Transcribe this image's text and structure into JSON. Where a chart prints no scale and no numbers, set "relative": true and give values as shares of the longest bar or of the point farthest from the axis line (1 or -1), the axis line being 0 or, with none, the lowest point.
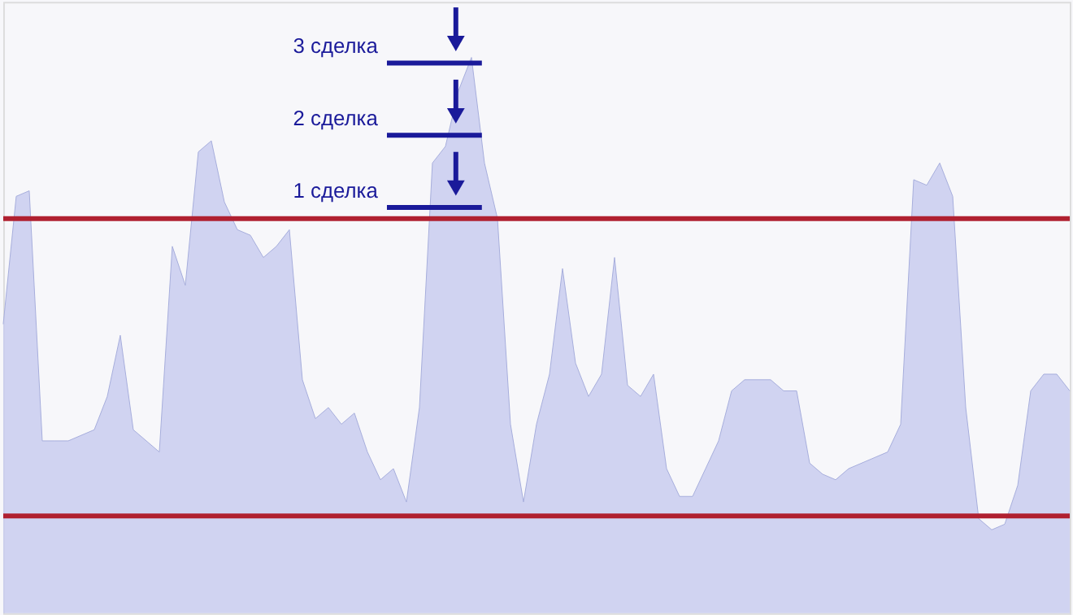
{
  "chart_data": {
    "type": "area",
    "relative": true,
    "tick_labels": false,
    "grid": false,
    "categories": [
      null,
      null,
      null,
      null,
      null,
      null,
      null,
      null,
      null,
      null,
      null,
      null,
      null,
      null,
      null,
      null,
      null,
      null,
      null,
      null,
      null,
      null,
      null,
      null,
      null,
      null,
      null,
      null,
      null,
      null,
      null,
      null,
      null,
      null,
      null,
      null,
      null,
      null,
      null,
      null,
      null,
      null,
      null,
      null,
      null,
      null,
      null,
      null,
      null,
      null,
      null,
      null,
      null,
      null,
      null,
      null,
      null,
      null,
      null,
      null,
      null,
      null,
      null,
      null,
      null,
      null,
      null,
      null,
      null,
      null,
      null,
      null,
      null,
      null,
      null,
      null,
      null,
      null,
      null,
      null,
      null,
      null,
      null
    ],
    "series": [
      {
        "color": "#c9cdee",
        "values": [
          0.52,
          0.75,
          0.76,
          0.31,
          0.31,
          0.31,
          0.32,
          0.33,
          0.39,
          0.5,
          0.33,
          0.31,
          0.29,
          0.66,
          0.59,
          0.83,
          0.85,
          0.74,
          0.69,
          0.68,
          0.64,
          0.66,
          0.69,
          0.42,
          0.35,
          0.37,
          0.34,
          0.36,
          0.29,
          0.24,
          0.26,
          0.2,
          0.37,
          0.81,
          0.84,
          0.94,
          1.0,
          0.81,
          0.71,
          0.34,
          0.2,
          0.34,
          0.43,
          0.62,
          0.45,
          0.39,
          0.43,
          0.64,
          0.41,
          0.39,
          0.43,
          0.26,
          0.21,
          0.21,
          0.26,
          0.31,
          0.4,
          0.42,
          0.42,
          0.42,
          0.4,
          0.4,
          0.27,
          0.25,
          0.24,
          0.26,
          0.27,
          0.28,
          0.29,
          0.34,
          0.78,
          0.77,
          0.81,
          0.75,
          0.37,
          0.17,
          0.15,
          0.16,
          0.23,
          0.4,
          0.43,
          0.43,
          0.4
        ]
      }
    ],
    "ref_lines": [
      {
        "axis": "y",
        "value": 0.71,
        "color": "#b02030"
      },
      {
        "axis": "y",
        "value": 0.175,
        "color": "#b02030"
      }
    ],
    "annotations": [
      "3 сделка",
      "2 сделка",
      "1 сделка"
    ]
  }
}
